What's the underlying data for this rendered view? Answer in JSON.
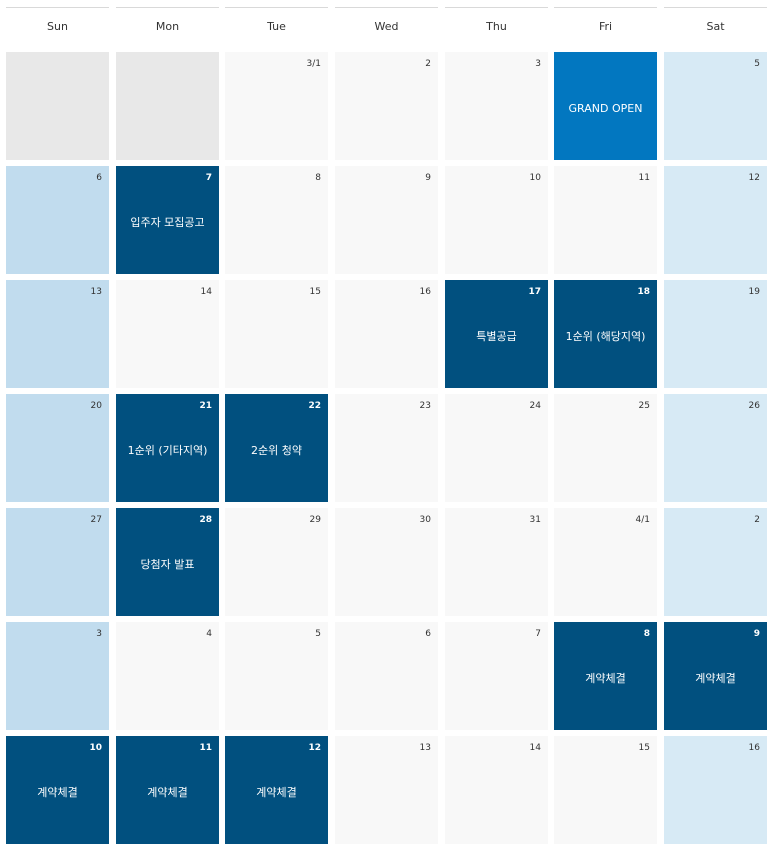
{
  "weekdays": [
    "Sun",
    "Mon",
    "Tue",
    "Wed",
    "Thu",
    "Fri",
    "Sat"
  ],
  "colors": {
    "event": "#01507f",
    "grand_open": "#0277c0",
    "saturday": "#d7eaf5",
    "sunday": "#c1dcee",
    "weekday": "#f8f8f8",
    "empty": "#e8e8e8"
  },
  "weeks": [
    [
      {
        "date": "",
        "type": "gray",
        "label": ""
      },
      {
        "date": "",
        "type": "gray",
        "label": ""
      },
      {
        "date": "3/1",
        "type": "light",
        "label": ""
      },
      {
        "date": "2",
        "type": "light",
        "label": ""
      },
      {
        "date": "3",
        "type": "light",
        "label": ""
      },
      {
        "date": "",
        "type": "open",
        "label": "GRAND OPEN"
      },
      {
        "date": "5",
        "type": "sat",
        "label": ""
      }
    ],
    [
      {
        "date": "6",
        "type": "sun",
        "label": ""
      },
      {
        "date": "7",
        "type": "event",
        "label": "입주자 모집공고"
      },
      {
        "date": "8",
        "type": "light",
        "label": ""
      },
      {
        "date": "9",
        "type": "light",
        "label": ""
      },
      {
        "date": "10",
        "type": "light",
        "label": ""
      },
      {
        "date": "11",
        "type": "light",
        "label": ""
      },
      {
        "date": "12",
        "type": "sat",
        "label": ""
      }
    ],
    [
      {
        "date": "13",
        "type": "sun",
        "label": ""
      },
      {
        "date": "14",
        "type": "light",
        "label": ""
      },
      {
        "date": "15",
        "type": "light",
        "label": ""
      },
      {
        "date": "16",
        "type": "light",
        "label": ""
      },
      {
        "date": "17",
        "type": "event",
        "label": "특별공급"
      },
      {
        "date": "18",
        "type": "event",
        "label": "1순위 (해당지역)"
      },
      {
        "date": "19",
        "type": "sat",
        "label": ""
      }
    ],
    [
      {
        "date": "20",
        "type": "sun",
        "label": ""
      },
      {
        "date": "21",
        "type": "event",
        "label": "1순위 (기타지역)"
      },
      {
        "date": "22",
        "type": "event",
        "label": "2순위 청약"
      },
      {
        "date": "23",
        "type": "light",
        "label": ""
      },
      {
        "date": "24",
        "type": "light",
        "label": ""
      },
      {
        "date": "25",
        "type": "light",
        "label": ""
      },
      {
        "date": "26",
        "type": "sat",
        "label": ""
      }
    ],
    [
      {
        "date": "27",
        "type": "sun",
        "label": ""
      },
      {
        "date": "28",
        "type": "event",
        "label": "당첨자 발표"
      },
      {
        "date": "29",
        "type": "light",
        "label": ""
      },
      {
        "date": "30",
        "type": "light",
        "label": ""
      },
      {
        "date": "31",
        "type": "light",
        "label": ""
      },
      {
        "date": "4/1",
        "type": "light",
        "label": ""
      },
      {
        "date": "2",
        "type": "sat",
        "label": ""
      }
    ],
    [
      {
        "date": "3",
        "type": "sun",
        "label": ""
      },
      {
        "date": "4",
        "type": "light",
        "label": ""
      },
      {
        "date": "5",
        "type": "light",
        "label": ""
      },
      {
        "date": "6",
        "type": "light",
        "label": ""
      },
      {
        "date": "7",
        "type": "light",
        "label": ""
      },
      {
        "date": "8",
        "type": "event",
        "label": "계약체결"
      },
      {
        "date": "9",
        "type": "event",
        "label": "계약체결"
      }
    ],
    [
      {
        "date": "10",
        "type": "event",
        "label": "계약체결"
      },
      {
        "date": "11",
        "type": "event",
        "label": "계약체결"
      },
      {
        "date": "12",
        "type": "event",
        "label": "계약체결"
      },
      {
        "date": "13",
        "type": "light",
        "label": ""
      },
      {
        "date": "14",
        "type": "light",
        "label": ""
      },
      {
        "date": "15",
        "type": "light",
        "label": ""
      },
      {
        "date": "16",
        "type": "sat",
        "label": ""
      }
    ]
  ]
}
